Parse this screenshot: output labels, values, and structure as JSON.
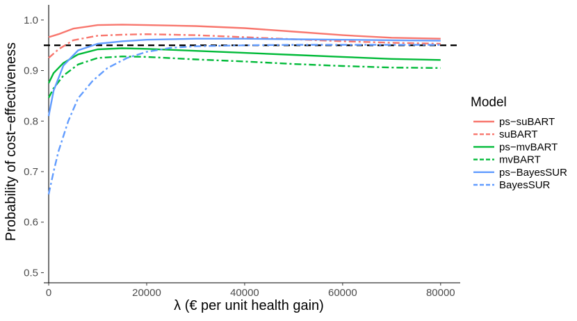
{
  "chart_data": {
    "type": "line",
    "title": "",
    "xlabel": "λ (€ per unit health gain)",
    "ylabel": "Probability of cost−effectiveness",
    "xlim": [
      -1000,
      84000
    ],
    "ylim": [
      0.48,
      1.03
    ],
    "x_ticks": [
      0,
      20000,
      40000,
      60000,
      80000
    ],
    "x_tick_labels": [
      "0",
      "20000",
      "40000",
      "60000",
      "80000"
    ],
    "y_ticks": [
      0.5,
      0.6,
      0.7,
      0.8,
      0.9,
      1.0
    ],
    "y_tick_labels": [
      "0.5",
      "0.6",
      "0.7",
      "0.8",
      "0.9",
      "1.0"
    ],
    "grid": false,
    "reference_lines": [
      {
        "axis": "y",
        "value": 0.95,
        "style": "dashed",
        "color": "#000000"
      }
    ],
    "legend": {
      "title": "Model",
      "position": "right"
    },
    "series": [
      {
        "name": "ps−suBART",
        "color": "#F8766D",
        "dash": "solid",
        "x": [
          0,
          2000,
          5000,
          10000,
          15000,
          20000,
          30000,
          40000,
          50000,
          60000,
          70000,
          80000
        ],
        "y": [
          0.966,
          0.972,
          0.983,
          0.99,
          0.991,
          0.99,
          0.988,
          0.984,
          0.977,
          0.97,
          0.965,
          0.963
        ]
      },
      {
        "name": "suBART",
        "color": "#F8766D",
        "dash": "dashdot",
        "x": [
          0,
          2000,
          5000,
          10000,
          15000,
          20000,
          30000,
          40000,
          50000,
          60000,
          70000,
          80000
        ],
        "y": [
          0.925,
          0.942,
          0.96,
          0.969,
          0.971,
          0.972,
          0.97,
          0.966,
          0.962,
          0.958,
          0.955,
          0.953
        ]
      },
      {
        "name": "ps−mvBART",
        "color": "#00BA38",
        "dash": "solid",
        "x": [
          0,
          1000,
          3000,
          6000,
          10000,
          15000,
          20000,
          30000,
          40000,
          50000,
          60000,
          70000,
          80000
        ],
        "y": [
          0.875,
          0.895,
          0.915,
          0.932,
          0.942,
          0.944,
          0.943,
          0.939,
          0.935,
          0.931,
          0.927,
          0.923,
          0.921
        ]
      },
      {
        "name": "mvBART",
        "color": "#00BA38",
        "dash": "dashdot",
        "x": [
          0,
          1000,
          3000,
          6000,
          10000,
          15000,
          20000,
          30000,
          40000,
          50000,
          60000,
          70000,
          80000
        ],
        "y": [
          0.846,
          0.865,
          0.89,
          0.912,
          0.925,
          0.928,
          0.927,
          0.922,
          0.918,
          0.913,
          0.909,
          0.906,
          0.905
        ]
      },
      {
        "name": "ps−BayesSUR",
        "color": "#619CFF",
        "dash": "solid",
        "x": [
          0,
          1000,
          3000,
          6000,
          10000,
          15000,
          20000,
          30000,
          40000,
          50000,
          60000,
          70000,
          80000
        ],
        "y": [
          0.81,
          0.86,
          0.91,
          0.94,
          0.953,
          0.958,
          0.961,
          0.963,
          0.963,
          0.962,
          0.961,
          0.96,
          0.959
        ]
      },
      {
        "name": "BayesSUR",
        "color": "#619CFF",
        "dash": "dashdot",
        "x": [
          0,
          1000,
          2000,
          4000,
          6000,
          9000,
          12000,
          16000,
          20000,
          25000,
          30000,
          40000,
          50000,
          60000,
          70000,
          80000
        ],
        "y": [
          0.655,
          0.7,
          0.74,
          0.8,
          0.845,
          0.88,
          0.905,
          0.925,
          0.937,
          0.945,
          0.948,
          0.95,
          0.951,
          0.951,
          0.951,
          0.951
        ]
      }
    ]
  }
}
